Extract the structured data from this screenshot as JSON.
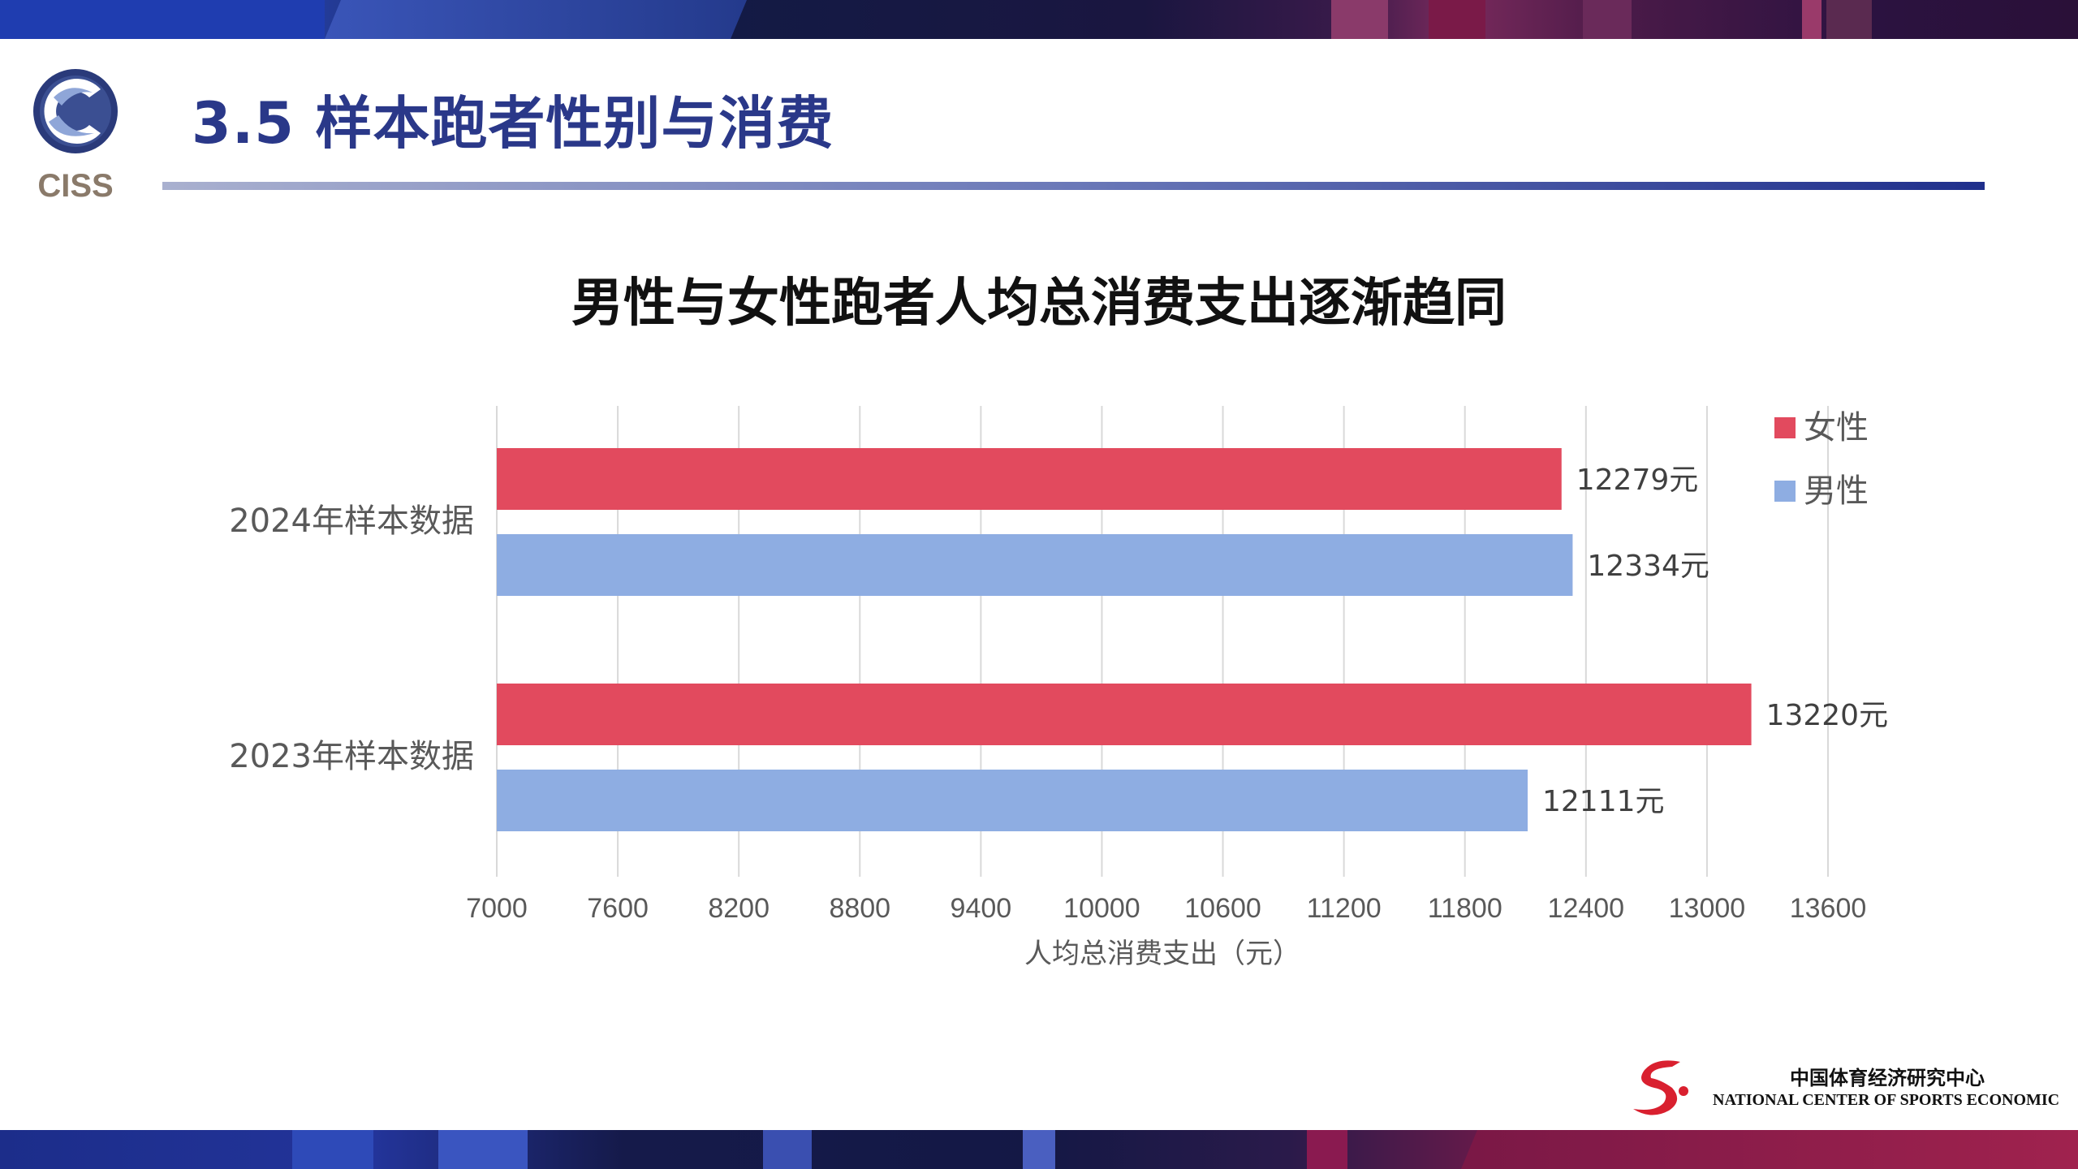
{
  "header": {
    "title": "3.5 样本跑者性别与消费",
    "logo_text": "CISS"
  },
  "chart_data": {
    "type": "bar",
    "orientation": "horizontal",
    "title": "男性与女性跑者人均总消费支出逐渐趋同",
    "xlabel": "人均总消费支出（元）",
    "ylabel": "",
    "categories": [
      "2024年样本数据",
      "2023年样本数据"
    ],
    "series": [
      {
        "name": "女性",
        "color": "#e24a5e",
        "values": [
          12279,
          13220
        ],
        "labels": [
          "12279元",
          "13220元"
        ]
      },
      {
        "name": "男性",
        "color": "#8eade2",
        "values": [
          12334,
          12111
        ],
        "labels": [
          "12334元",
          "12111元"
        ]
      }
    ],
    "xlim": [
      7000,
      13600
    ],
    "xticks": [
      7000,
      7600,
      8200,
      8800,
      9400,
      10000,
      10600,
      11200,
      11800,
      12400,
      13000,
      13600
    ],
    "grid": true,
    "legend_position": "top-right"
  },
  "footer": {
    "org_cn": "中国体育经济研究中心",
    "org_en": "NATIONAL CENTER OF SPORTS ECONOMIC"
  },
  "colors": {
    "title": "#2a3889",
    "female": "#e24a5e",
    "male": "#8eade2"
  }
}
